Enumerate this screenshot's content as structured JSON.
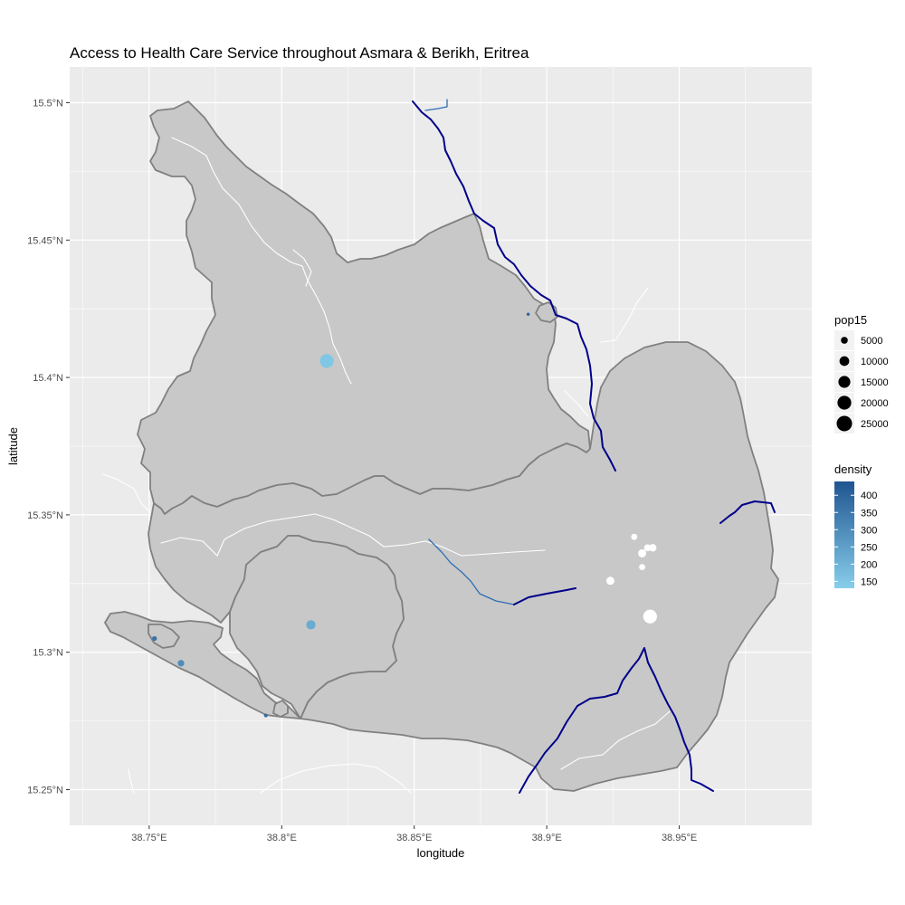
{
  "chart_data": {
    "type": "map",
    "title": "Access to Health Care Service throughout Asmara & Berikh, Eritrea",
    "xlabel": "longitude",
    "ylabel": "latitude",
    "xlim": [
      38.72,
      39.0
    ],
    "ylim": [
      15.237,
      15.513
    ],
    "x_ticks": [
      38.75,
      38.8,
      38.85,
      38.9,
      38.95
    ],
    "x_tick_labels": [
      "38.75°E",
      "38.8°E",
      "38.85°E",
      "38.9°E",
      "38.95°E"
    ],
    "y_ticks": [
      15.25,
      15.3,
      15.35,
      15.4,
      15.45,
      15.5
    ],
    "y_tick_labels": [
      "15.25°N",
      "15.3°N",
      "15.35°N",
      "15.4°N",
      "15.45°N",
      "15.5°N"
    ],
    "grid": true,
    "colors": {
      "panel_background": "#ebebeb",
      "region_fill": "#c8c8c8",
      "region_border": "#808080",
      "river_main": "#00008b",
      "river_minor": "#2e6db4",
      "white_road": "#ffffff",
      "density_low": "#87ceeb",
      "density_high": "#1f5591"
    },
    "legend_size": {
      "title": "pop15",
      "values": [
        5000,
        10000,
        15000,
        20000,
        25000
      ],
      "labels": [
        "5000",
        "10000",
        "15000",
        "20000",
        "25000"
      ]
    },
    "legend_color": {
      "title": "density",
      "range": [
        130,
        440
      ],
      "ticks": [
        150,
        200,
        250,
        300,
        350,
        400
      ],
      "tick_labels": [
        "150",
        "200",
        "250",
        "300",
        "350",
        "400"
      ]
    },
    "facilities": [
      {
        "lon": 38.817,
        "lat": 15.406,
        "pop15": 20000,
        "density": 150
      },
      {
        "lon": 38.811,
        "lat": 15.31,
        "pop15": 9000,
        "density": 220
      },
      {
        "lon": 38.752,
        "lat": 15.305,
        "pop15": 2500,
        "density": 360
      },
      {
        "lon": 38.762,
        "lat": 15.296,
        "pop15": 4500,
        "density": 300
      },
      {
        "lon": 38.794,
        "lat": 15.277,
        "pop15": 1500,
        "density": 380
      },
      {
        "lon": 38.893,
        "lat": 15.423,
        "pop15": 1000,
        "density": 400
      }
    ],
    "white_points": [
      {
        "lon": 38.933,
        "lat": 15.342,
        "pop15": 4000
      },
      {
        "lon": 38.938,
        "lat": 15.338,
        "pop15": 5000
      },
      {
        "lon": 38.94,
        "lat": 15.338,
        "pop15": 6000
      },
      {
        "lon": 38.936,
        "lat": 15.336,
        "pop15": 7000
      },
      {
        "lon": 38.936,
        "lat": 15.331,
        "pop15": 4000
      },
      {
        "lon": 38.924,
        "lat": 15.326,
        "pop15": 7000
      },
      {
        "lon": 38.939,
        "lat": 15.313,
        "pop15": 20000
      }
    ]
  }
}
